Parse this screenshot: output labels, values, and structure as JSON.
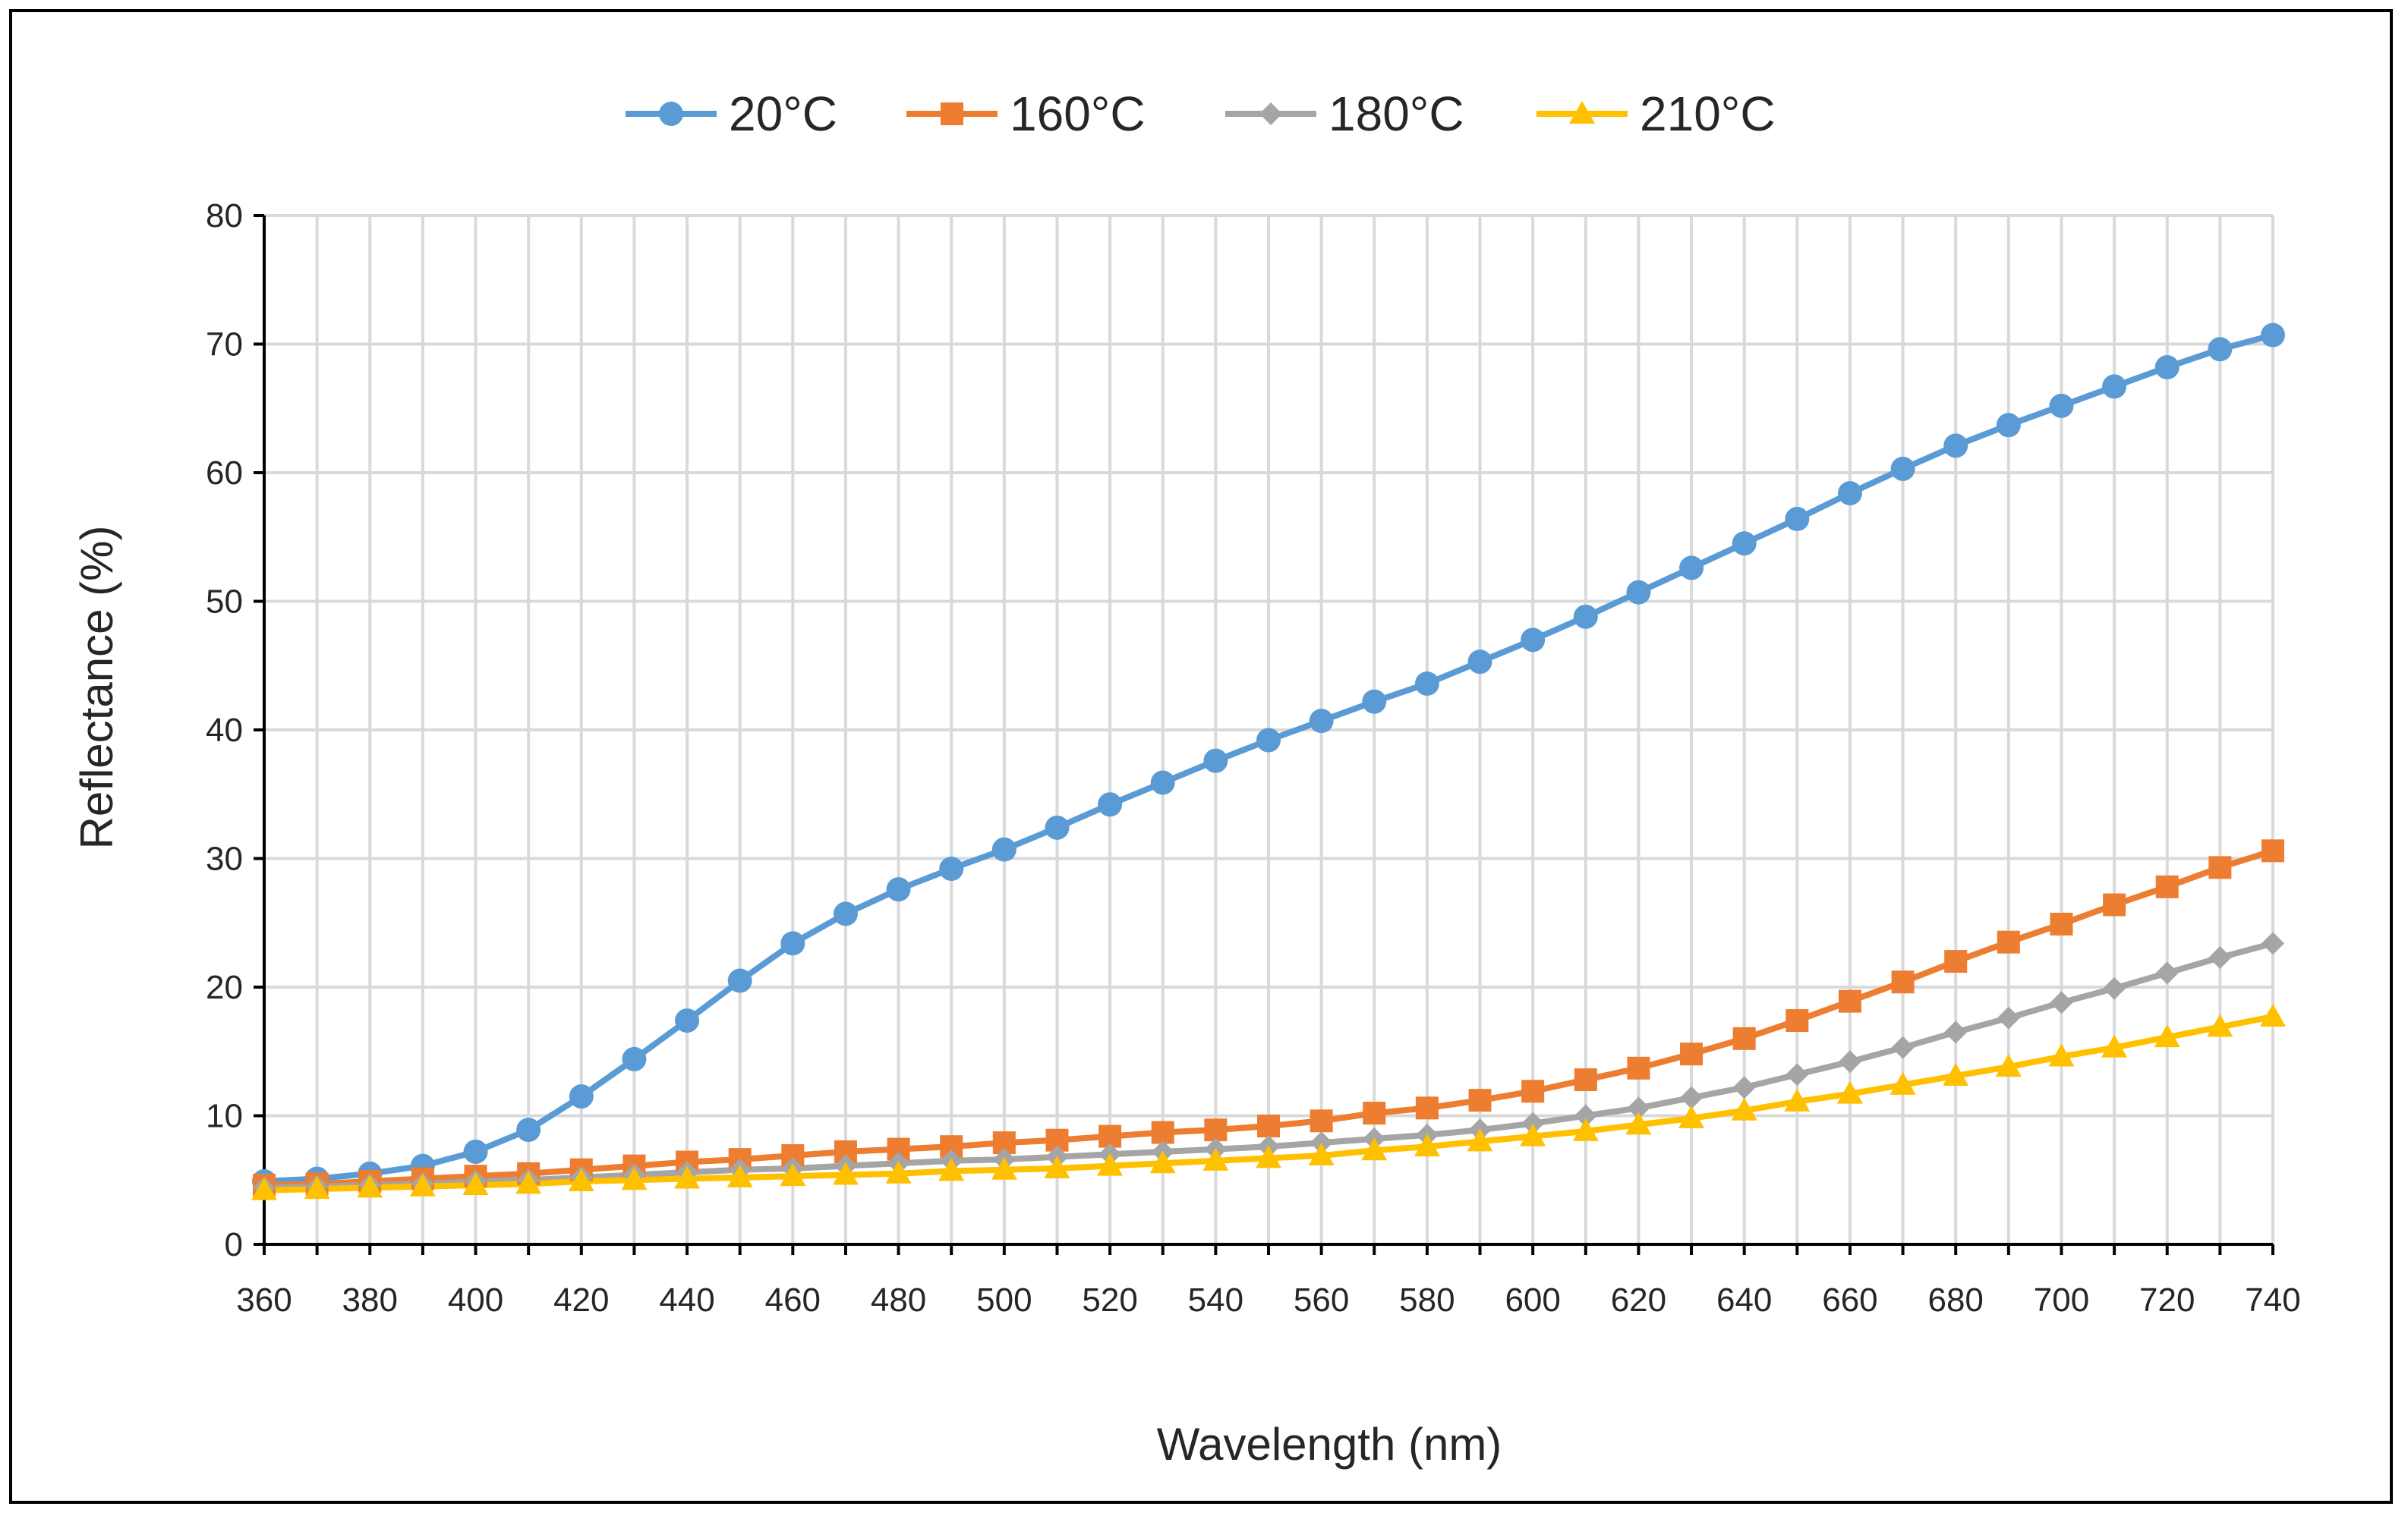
{
  "chart_data": {
    "type": "line",
    "title": "",
    "xlabel": "Wavelength (nm)",
    "ylabel": "Reflectance (%)",
    "xlim": [
      360,
      740
    ],
    "ylim": [
      0,
      80
    ],
    "x_ticks": [
      "360",
      "380",
      "400",
      "420",
      "440",
      "460",
      "480",
      "500",
      "520",
      "540",
      "560",
      "580",
      "600",
      "620",
      "640",
      "660",
      "680",
      "700",
      "720",
      "740"
    ],
    "y_ticks": [
      "0",
      "10",
      "20",
      "30",
      "40",
      "50",
      "60",
      "70",
      "80"
    ],
    "grid": true,
    "legend_position": "top",
    "x": [
      360,
      370,
      380,
      390,
      400,
      410,
      420,
      430,
      440,
      450,
      460,
      470,
      480,
      490,
      500,
      510,
      520,
      530,
      540,
      550,
      560,
      570,
      580,
      590,
      600,
      610,
      620,
      630,
      640,
      650,
      660,
      670,
      680,
      690,
      700,
      710,
      720,
      730,
      740
    ],
    "series": [
      {
        "name": "20°C",
        "color": "#5b9bd5",
        "marker": "circle",
        "values": [
          4.9,
          5.1,
          5.5,
          6.1,
          7.2,
          8.9,
          11.5,
          14.4,
          17.4,
          20.5,
          23.4,
          25.7,
          27.6,
          29.2,
          30.7,
          32.4,
          34.2,
          35.9,
          37.6,
          39.2,
          40.7,
          42.2,
          43.6,
          45.3,
          47.0,
          48.8,
          50.7,
          52.6,
          54.5,
          56.4,
          58.4,
          60.3,
          62.1,
          63.7,
          65.2,
          66.7,
          68.2,
          69.6,
          70.7
        ]
      },
      {
        "name": "160°C",
        "color": "#ed7d31",
        "marker": "square",
        "values": [
          4.6,
          4.7,
          4.9,
          5.1,
          5.3,
          5.5,
          5.8,
          6.1,
          6.4,
          6.6,
          6.9,
          7.2,
          7.4,
          7.6,
          7.9,
          8.1,
          8.4,
          8.7,
          8.9,
          9.2,
          9.6,
          10.2,
          10.6,
          11.2,
          11.9,
          12.8,
          13.7,
          14.8,
          16.0,
          17.4,
          18.9,
          20.4,
          22.0,
          23.5,
          24.9,
          26.4,
          27.8,
          29.3,
          30.6
        ]
      },
      {
        "name": "180°C",
        "color": "#a5a5a5",
        "marker": "diamond",
        "values": [
          4.4,
          4.5,
          4.6,
          4.7,
          4.9,
          5.0,
          5.2,
          5.4,
          5.6,
          5.8,
          5.9,
          6.1,
          6.3,
          6.5,
          6.6,
          6.8,
          7.0,
          7.2,
          7.4,
          7.6,
          7.9,
          8.2,
          8.5,
          8.9,
          9.4,
          10.0,
          10.6,
          11.4,
          12.2,
          13.2,
          14.2,
          15.3,
          16.5,
          17.6,
          18.8,
          19.9,
          21.1,
          22.3,
          23.4
        ]
      },
      {
        "name": "210°C",
        "color": "#ffc000",
        "marker": "triangle",
        "values": [
          4.2,
          4.3,
          4.4,
          4.5,
          4.6,
          4.7,
          4.9,
          5.0,
          5.1,
          5.2,
          5.3,
          5.4,
          5.5,
          5.7,
          5.8,
          5.9,
          6.1,
          6.3,
          6.5,
          6.7,
          6.9,
          7.3,
          7.6,
          8.0,
          8.4,
          8.8,
          9.3,
          9.8,
          10.4,
          11.1,
          11.7,
          12.4,
          13.1,
          13.8,
          14.6,
          15.3,
          16.1,
          16.9,
          17.7
        ]
      }
    ]
  }
}
